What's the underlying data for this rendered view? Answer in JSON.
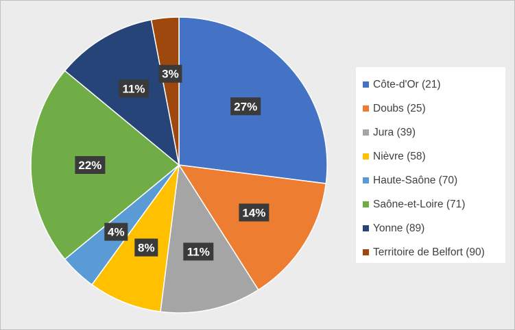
{
  "chart_data": {
    "type": "pie",
    "title": "",
    "legend_position": "right",
    "categories": [
      "Côte-d'Or (21)",
      "Doubs (25)",
      "Jura (39)",
      "Nièvre (58)",
      "Haute-Saône (70)",
      "Saône-et-Loire (71)",
      "Yonne (89)",
      "Territoire de Belfort (90)"
    ],
    "values": [
      27,
      14,
      11,
      8,
      4,
      22,
      11,
      3
    ],
    "labels": [
      "27%",
      "14%",
      "11%",
      "8%",
      "4%",
      "22%",
      "11%",
      "3%"
    ],
    "colors": [
      "#4472C4",
      "#ED7D31",
      "#A5A5A5",
      "#FFC000",
      "#5B9BD5",
      "#70AD47",
      "#264478",
      "#9E480E"
    ]
  }
}
